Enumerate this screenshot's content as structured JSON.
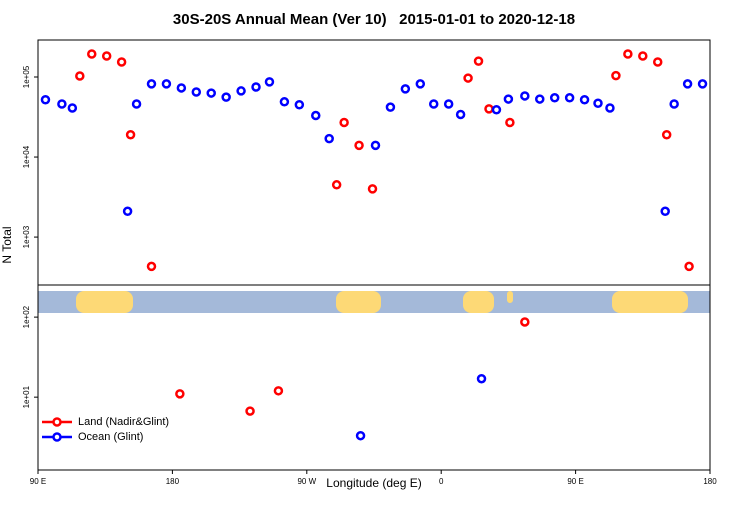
{
  "chart_data": {
    "type": "scatter",
    "title": "30S-20S Annual Mean (Ver 10)   2015-01-01 to 2020-12-18",
    "xlabel": "Longitude (deg E)",
    "ylabel": "N Total",
    "xlim": [
      90,
      540
    ],
    "xticks": [
      {
        "value": 90,
        "label": "90 E"
      },
      {
        "value": 180,
        "label": "180"
      },
      {
        "value": 270,
        "label": "90 W"
      },
      {
        "value": 360,
        "label": "0"
      },
      {
        "value": 450,
        "label": "90 E"
      },
      {
        "value": 540,
        "label": "180"
      }
    ],
    "ylim": [
      1.23,
      290000
    ],
    "log_y": true,
    "yticks": [
      {
        "value": 10,
        "label": "1e+01"
      },
      {
        "value": 100,
        "label": "1e+02"
      },
      {
        "value": 1000,
        "label": "1e+03"
      },
      {
        "value": 10000,
        "label": "1e+04"
      },
      {
        "value": 100000,
        "label": "1e+05"
      }
    ],
    "legend": "bottom left",
    "series": [
      {
        "name": "Land (Nadir&Glint)",
        "color": "#ff0000",
        "x": [
          118,
          126,
          136,
          146,
          152,
          166,
          185,
          232,
          251,
          290,
          295,
          305,
          314,
          378,
          385,
          392,
          406,
          416,
          477,
          485,
          495,
          505,
          511,
          526
        ],
        "values": [
          103000,
          194000,
          183000,
          154000,
          19000,
          430,
          11,
          6.7,
          12,
          4500,
          27000,
          14000,
          4000,
          97000,
          158000,
          40000,
          27000,
          87,
          104000,
          194000,
          183000,
          154000,
          19000,
          430
        ]
      },
      {
        "name": "Ocean (Glint)",
        "color": "#0000ff",
        "x": [
          95,
          106,
          113,
          150,
          156,
          166,
          176,
          186,
          196,
          206,
          216,
          226,
          236,
          245,
          255,
          265,
          276,
          285,
          306,
          316,
          326,
          336,
          346,
          355,
          365,
          373,
          387,
          397,
          405,
          416,
          426,
          436,
          446,
          456,
          465,
          473,
          510,
          516,
          525,
          535
        ],
        "values": [
          52000,
          46000,
          41000,
          2100,
          46000,
          82000,
          82000,
          73000,
          65000,
          63000,
          56000,
          67000,
          75000,
          87000,
          49000,
          45000,
          33000,
          17000,
          3.3,
          14000,
          42000,
          71000,
          82000,
          46000,
          46000,
          34000,
          17,
          39000,
          53000,
          58000,
          53000,
          55000,
          55000,
          52000,
          47000,
          41000,
          2100,
          46000,
          82000,
          82000
        ]
      }
    ]
  }
}
